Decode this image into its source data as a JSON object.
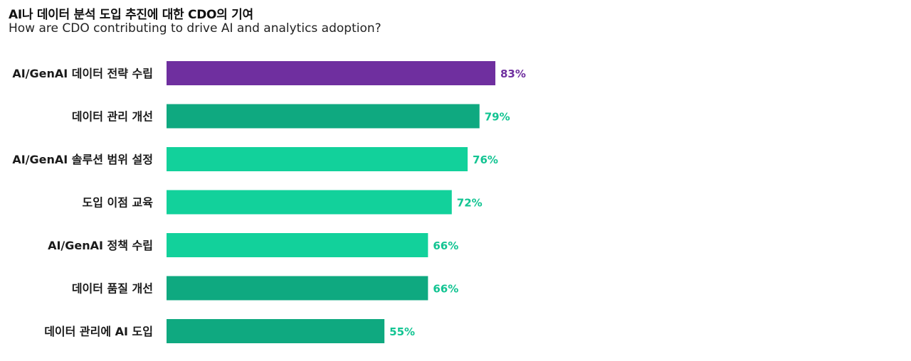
{
  "header": {
    "title": "AI나 데이터 분석 도입 추진에 대한 CDO의 기여",
    "subtitle": "How are CDO contributing to drive AI and analytics adoption?"
  },
  "colors": {
    "highlight": "#6f2f9f",
    "dark_green": "#0fa980",
    "light_green": "#12d19b",
    "highlight_label": "#6f2f9f",
    "green_label": "#12c492"
  },
  "chart_data": {
    "type": "bar",
    "orientation": "horizontal",
    "categories": [
      "AI/GenAI 데이터 전략 수립",
      "데이터 관리 개선",
      "AI/GenAI 솔루션 범위 설정",
      "도입 이점 교육",
      "AI/GenAI 정책 수립",
      "데이터 품질 개선",
      "데이터 관리에 AI 도입"
    ],
    "values": [
      83,
      79,
      76,
      72,
      66,
      66,
      55
    ],
    "value_labels": [
      "83%",
      "79%",
      "76%",
      "72%",
      "66%",
      "66%",
      "55%"
    ],
    "bar_colors": [
      "highlight",
      "dark_green",
      "light_green",
      "light_green",
      "light_green",
      "dark_green",
      "dark_green"
    ],
    "unit": "%",
    "xlim": [
      0,
      100
    ],
    "grid": false,
    "legend": "none"
  }
}
